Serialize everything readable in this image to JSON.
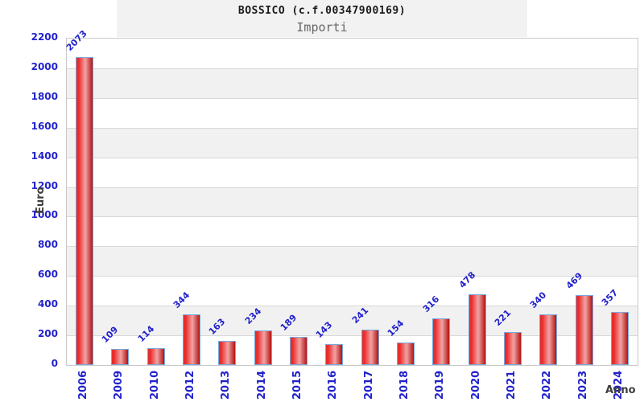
{
  "header": {
    "title": "BOSSICO (c.f.00347900169)",
    "subtitle": "Importi"
  },
  "axes": {
    "y_title": "Euro",
    "x_title": "Anno",
    "y_ticks": [
      0,
      200,
      400,
      600,
      800,
      1000,
      1200,
      1400,
      1600,
      1800,
      2000,
      2200
    ]
  },
  "chart_data": {
    "type": "bar",
    "title": "BOSSICO (c.f.00347900169)",
    "subtitle": "Importi",
    "xlabel": "Anno",
    "ylabel": "Euro",
    "categories": [
      "2006",
      "2009",
      "2010",
      "2012",
      "2013",
      "2014",
      "2015",
      "2016",
      "2017",
      "2018",
      "2019",
      "2020",
      "2021",
      "2022",
      "2023",
      "2024"
    ],
    "values": [
      2073,
      109,
      114,
      344,
      163,
      234,
      189,
      143,
      241,
      154,
      316,
      478,
      221,
      340,
      469,
      357
    ],
    "ylim": [
      0,
      2200
    ],
    "ytick_step": 200,
    "grid": "horizontal gridlines with alternating gray stripes",
    "legend": "none",
    "bar_labels_rotation_deg": -45,
    "xtick_rotation_deg": -90,
    "colors": {
      "bar_fill_main": "#ee2c2c",
      "bar_fill_light": "#f0a4a4",
      "bar_fill_dark": "#b51212",
      "bar_border": "#77aadd",
      "tick_label_blue": "#2222cc",
      "stripe_gray": "#f1f1f1",
      "gridline_gray": "#d8d8d8",
      "axis_title_gray": "#3d3d3d",
      "title_background": "#f2f2f2"
    }
  }
}
